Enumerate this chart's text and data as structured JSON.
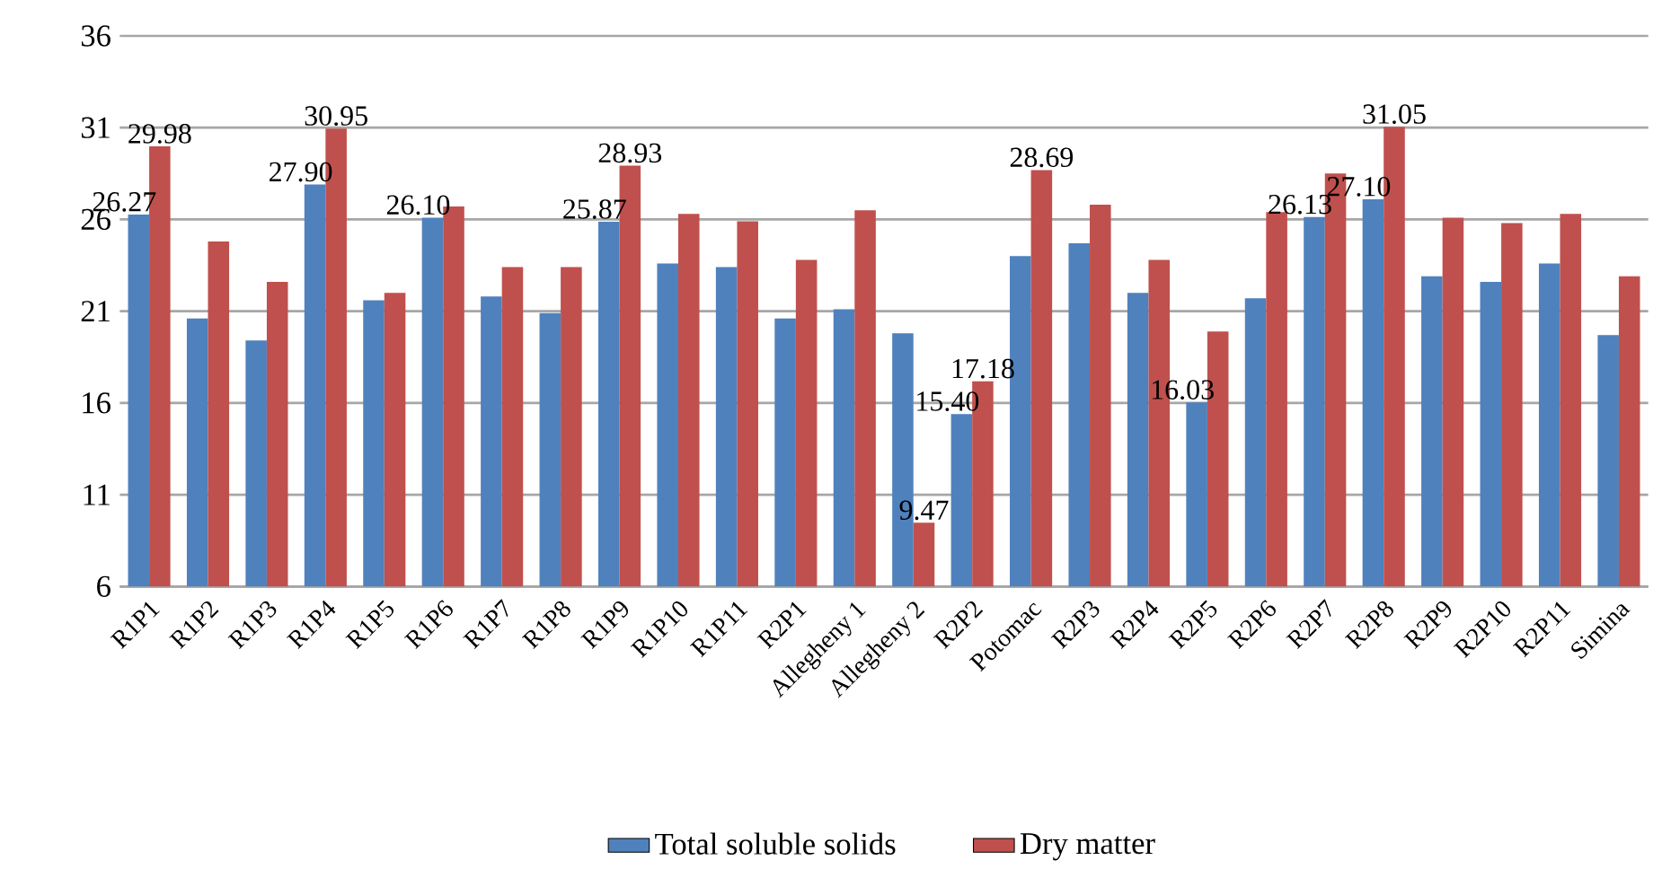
{
  "chart_data": {
    "type": "bar",
    "categories": [
      "R1P1",
      "R1P2",
      "R1P3",
      "R1P4",
      "R1P5",
      "R1P6",
      "R1P7",
      "R1P8",
      "R1P9",
      "R1P10",
      "R1P11",
      "R2P1",
      "Allegheny 1",
      "Allegheny 2",
      "R2P2",
      "Potomac",
      "R2P3",
      "R2P4",
      "R2P5",
      "R2P6",
      "R2P7",
      "R2P8",
      "R2P9",
      "R2P10",
      "R2P11",
      "Simina"
    ],
    "series": [
      {
        "name": "Total soluble solids",
        "color": "#4f81bd",
        "values": [
          26.27,
          20.6,
          19.4,
          27.9,
          21.6,
          26.1,
          21.8,
          20.9,
          25.87,
          23.6,
          23.4,
          20.6,
          21.1,
          19.8,
          15.4,
          24.0,
          24.7,
          22.0,
          16.03,
          21.7,
          26.13,
          27.1,
          22.9,
          22.6,
          23.6,
          19.7
        ],
        "value_labels": [
          "26.27",
          null,
          null,
          "27.90",
          null,
          "26.10",
          null,
          null,
          "25.87",
          null,
          null,
          null,
          null,
          null,
          "15.40",
          null,
          null,
          null,
          "16.03",
          null,
          "26.13",
          "27.10",
          null,
          null,
          null,
          null
        ]
      },
      {
        "name": "Dry matter",
        "color": "#c0504d",
        "values": [
          29.98,
          24.8,
          22.6,
          30.95,
          22.0,
          26.7,
          23.4,
          23.4,
          28.93,
          26.3,
          25.9,
          23.8,
          26.5,
          9.47,
          17.18,
          28.69,
          26.8,
          23.8,
          19.9,
          26.4,
          28.5,
          31.05,
          26.1,
          25.8,
          26.3,
          22.9
        ],
        "value_labels": [
          "29.98",
          null,
          null,
          "30.95",
          null,
          null,
          null,
          null,
          "28.93",
          null,
          null,
          null,
          null,
          "9.47",
          "17.18",
          "28.69",
          null,
          null,
          null,
          null,
          null,
          "31.05",
          null,
          null,
          null,
          null
        ]
      }
    ],
    "ylim": [
      6,
      36
    ],
    "yticks": [
      6,
      11,
      16,
      21,
      26,
      31,
      36
    ],
    "grid": "y",
    "legend": "bottom"
  }
}
